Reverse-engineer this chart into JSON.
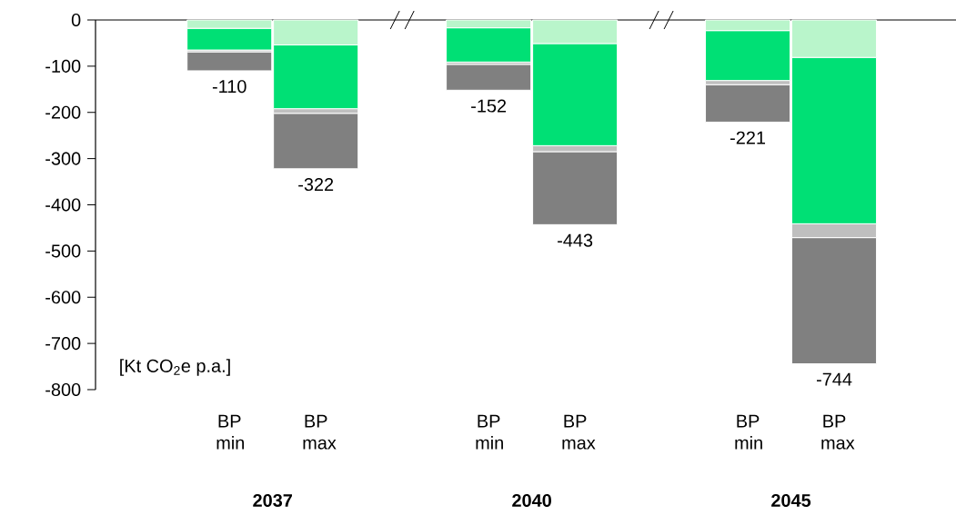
{
  "chart_data": {
    "type": "bar",
    "stacked": true,
    "categories": [
      "BP min",
      "BP max",
      "BP min",
      "BP max",
      "BP min",
      "BP max"
    ],
    "series": [
      {
        "color": "#b9f5cb",
        "values": [
          -18,
          -54,
          -17,
          -51,
          -23,
          -81
        ]
      },
      {
        "color": "#00e075",
        "values": [
          -47,
          -138,
          -74,
          -221,
          -108,
          -360
        ]
      },
      {
        "color": "#bfbfbf",
        "values": [
          -4,
          -10,
          -5,
          -13,
          -9,
          -30
        ]
      },
      {
        "color": "#808080",
        "values": [
          -41,
          -120,
          -56,
          -158,
          -81,
          -273
        ]
      }
    ],
    "totals": [
      "-110",
      "-322",
      "-152",
      "-443",
      "-221",
      "-744"
    ],
    "ylim": [
      -800,
      0
    ],
    "yticks": [
      0,
      -100,
      -200,
      -300,
      -400,
      -500,
      -600,
      -700,
      -800
    ],
    "annotations": [
      "2037",
      "2040",
      "2045",
      "[Kt CO$_{2}$e p.a.]"
    ]
  }
}
